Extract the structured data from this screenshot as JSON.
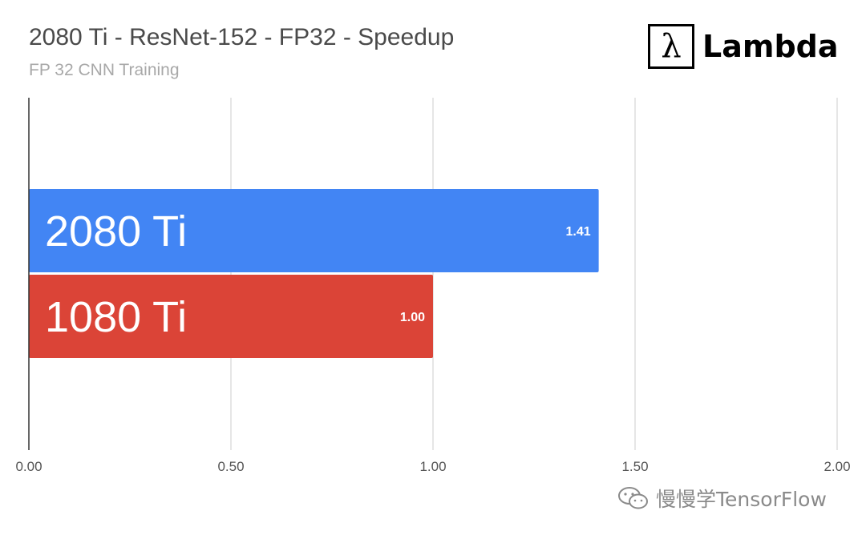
{
  "header": {
    "title": "2080 Ti - ResNet-152 - FP32 - Speedup",
    "subtitle": "FP 32 CNN Training"
  },
  "logo": {
    "symbol": "λ",
    "text": "Lambda"
  },
  "watermark": {
    "text": "慢慢学TensorFlow",
    "icon": "wechat-icon"
  },
  "chart_data": {
    "type": "bar",
    "orientation": "horizontal",
    "categories": [
      "2080 Ti",
      "1080 Ti"
    ],
    "values": [
      1.41,
      1.0
    ],
    "value_labels": [
      "1.41",
      "1.00"
    ],
    "colors": [
      "#4285f4",
      "#db4437"
    ],
    "title": "2080 Ti - ResNet-152 - FP32 - Speedup",
    "subtitle": "FP 32 CNN Training",
    "xlabel": "",
    "ylabel": "",
    "xlim": [
      0,
      2.0
    ],
    "xticks": [
      0,
      0.5,
      1.0,
      1.5,
      2.0
    ],
    "xtick_labels": [
      "0.00",
      "0.50",
      "1.00",
      "1.50",
      "2.00"
    ],
    "grid": true,
    "legend": "none"
  }
}
